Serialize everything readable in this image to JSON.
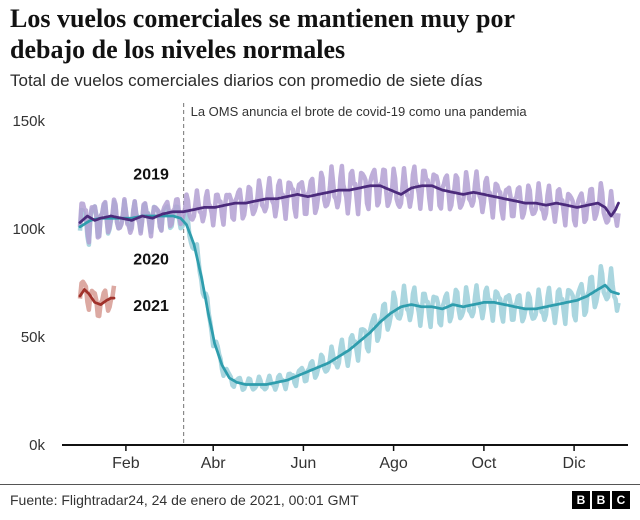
{
  "header": {
    "title": "Los vuelos comerciales se mantienen muy por debajo de los niveles normales",
    "subtitle": "Total de vuelos comerciales diarios con promedio de siete días"
  },
  "footer": {
    "source": "Fuente: Flightradar24, 24 de enero de 2021, 00:01 GMT",
    "logo": [
      "B",
      "B",
      "C"
    ]
  },
  "chart_data": {
    "type": "line",
    "title": "Total de vuelos comerciales diarios con promedio de siete días",
    "x_unit": "day_of_year",
    "xlim": [
      0,
      365
    ],
    "ylim": [
      0,
      150
    ],
    "grid": false,
    "legend_position": "inline-left",
    "y_ticks": [
      {
        "label": "0k",
        "value": 0
      },
      {
        "label": "50k",
        "value": 50
      },
      {
        "label": "100k",
        "value": 100
      },
      {
        "label": "150k",
        "value": 150
      }
    ],
    "x_ticks": [
      {
        "label": "Feb",
        "day": 31
      },
      {
        "label": "Abr",
        "day": 90
      },
      {
        "label": "Jun",
        "day": 151
      },
      {
        "label": "Ago",
        "day": 212
      },
      {
        "label": "Oct",
        "day": 273
      },
      {
        "label": "Dic",
        "day": 334
      }
    ],
    "event_line": {
      "day": 70,
      "label": "La OMS anuncia el brote de covid-19 como una pandemia"
    },
    "unit": "thousands of flights per day",
    "series": [
      {
        "name": "2019",
        "color": "#4b2a7b",
        "band_color": "#b3a0d2",
        "label": {
          "day": 36,
          "value": 123
        },
        "days": [
          0,
          5,
          10,
          14,
          21,
          28,
          35,
          42,
          49,
          56,
          63,
          70,
          77,
          84,
          91,
          98,
          105,
          112,
          119,
          126,
          133,
          140,
          147,
          154,
          161,
          168,
          175,
          182,
          189,
          196,
          203,
          210,
          217,
          224,
          231,
          238,
          245,
          252,
          259,
          266,
          273,
          280,
          287,
          294,
          301,
          308,
          315,
          322,
          329,
          336,
          343,
          350,
          355,
          359,
          362,
          364
        ],
        "avg": [
          103,
          106,
          104,
          105,
          106,
          105,
          104,
          106,
          105,
          107,
          108,
          108,
          109,
          110,
          110,
          111,
          112,
          112,
          113,
          114,
          114,
          115,
          116,
          115,
          116,
          117,
          118,
          118,
          119,
          120,
          120,
          118,
          116,
          119,
          120,
          120,
          118,
          117,
          116,
          117,
          116,
          115,
          114,
          113,
          112,
          112,
          111,
          112,
          111,
          110,
          111,
          112,
          110,
          106,
          109,
          112
        ],
        "amp_days": [
          0,
          20,
          60,
          120,
          180,
          240,
          300,
          340,
          364
        ],
        "amp": [
          10,
          7,
          6,
          7,
          9,
          8,
          7,
          7,
          9
        ]
      },
      {
        "name": "2020",
        "color": "#2e9dad",
        "band_color": "#9bcfd9",
        "label": {
          "day": 36,
          "value": 83.5
        },
        "days": [
          0,
          7,
          14,
          21,
          28,
          35,
          42,
          49,
          56,
          63,
          68,
          72,
          77,
          82,
          87,
          91,
          96,
          101,
          106,
          112,
          119,
          126,
          133,
          140,
          147,
          154,
          161,
          168,
          175,
          182,
          189,
          196,
          203,
          210,
          217,
          224,
          231,
          238,
          245,
          252,
          259,
          266,
          273,
          280,
          287,
          294,
          301,
          308,
          315,
          322,
          329,
          336,
          343,
          350,
          355,
          359,
          364
        ],
        "avg": [
          101,
          104,
          105,
          105,
          105,
          105,
          106,
          106,
          106,
          106,
          105,
          102,
          93,
          78,
          60,
          47,
          37,
          31,
          29,
          28,
          28,
          28,
          29,
          30,
          32,
          34,
          36,
          38,
          41,
          44,
          48,
          52,
          57,
          61,
          64,
          65,
          64,
          64,
          63,
          65,
          64,
          65,
          66,
          66,
          65,
          64,
          63,
          63,
          64,
          65,
          66,
          67,
          69,
          72,
          74,
          71,
          70
        ],
        "amp_days": [
          0,
          30,
          70,
          85,
          100,
          140,
          170,
          200,
          240,
          300,
          345,
          364
        ],
        "amp": [
          9,
          6,
          5,
          4,
          2.5,
          3,
          5,
          7,
          7,
          6,
          8,
          8
        ]
      },
      {
        "name": "2021",
        "color": "#a0312a",
        "band_color": "#d69a92",
        "label": {
          "day": 36,
          "value": 62
        },
        "days": [
          0,
          3,
          6,
          10,
          14,
          18,
          21,
          23
        ],
        "avg": [
          69,
          72,
          70,
          66,
          65,
          67,
          68,
          68
        ],
        "amp_days": [
          0,
          23
        ],
        "amp": [
          6,
          5
        ]
      }
    ]
  }
}
